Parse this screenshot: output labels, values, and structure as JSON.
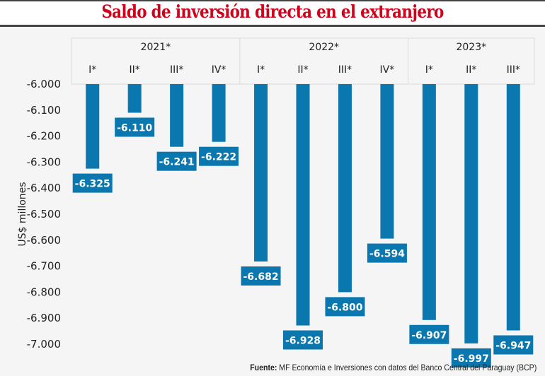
{
  "chart_data": {
    "type": "bar",
    "title": "Saldo de inversión directa en el extranjero",
    "ylabel": "US$ millones",
    "xlabel": "",
    "ylim": [
      -7000,
      -6000
    ],
    "yticks": [
      -6000,
      -6100,
      -6200,
      -6300,
      -6400,
      -6500,
      -6600,
      -6700,
      -6800,
      -6900,
      -7000
    ],
    "ytick_labels": [
      "-6.000",
      "-6.100",
      "-6.200",
      "-6.300",
      "-6.400",
      "-6.500",
      "-6.600",
      "-6.700",
      "-6.800",
      "-6.900",
      "-7.000"
    ],
    "groups": [
      {
        "label": "2021*",
        "categories": [
          "I*",
          "II*",
          "III*",
          "IV*"
        ]
      },
      {
        "label": "2022*",
        "categories": [
          "I*",
          "II*",
          "III*",
          "IV*"
        ]
      },
      {
        "label": "2023*",
        "categories": [
          "I*",
          "II*",
          "III*"
        ]
      }
    ],
    "categories": [
      "2021 I*",
      "2021 II*",
      "2021 III*",
      "2021 IV*",
      "2022 I*",
      "2022 II*",
      "2022 III*",
      "2022 IV*",
      "2023 I*",
      "2023 II*",
      "2023 III*"
    ],
    "values": [
      -6325,
      -6110,
      -6241,
      -6222,
      -6682,
      -6928,
      -6800,
      -6594,
      -6907,
      -6997,
      -6947
    ],
    "value_labels": [
      "-6.325",
      "-6.110",
      "-6.241",
      "-6.222",
      "-6.682",
      "-6.928",
      "-6.800",
      "-6.594",
      "-6.907",
      "-6.997",
      "-6.947"
    ],
    "bar_color": "#0a77ae",
    "grid": false,
    "legend": "none"
  },
  "source": {
    "prefix": "Fuente:",
    "text": " MF Economía e Inversiones con datos del Banco Central del Paraguay (BCP)"
  },
  "colors": {
    "title": "#d0021b",
    "bar": "#0a77ae",
    "background": "#f5f5f5"
  }
}
